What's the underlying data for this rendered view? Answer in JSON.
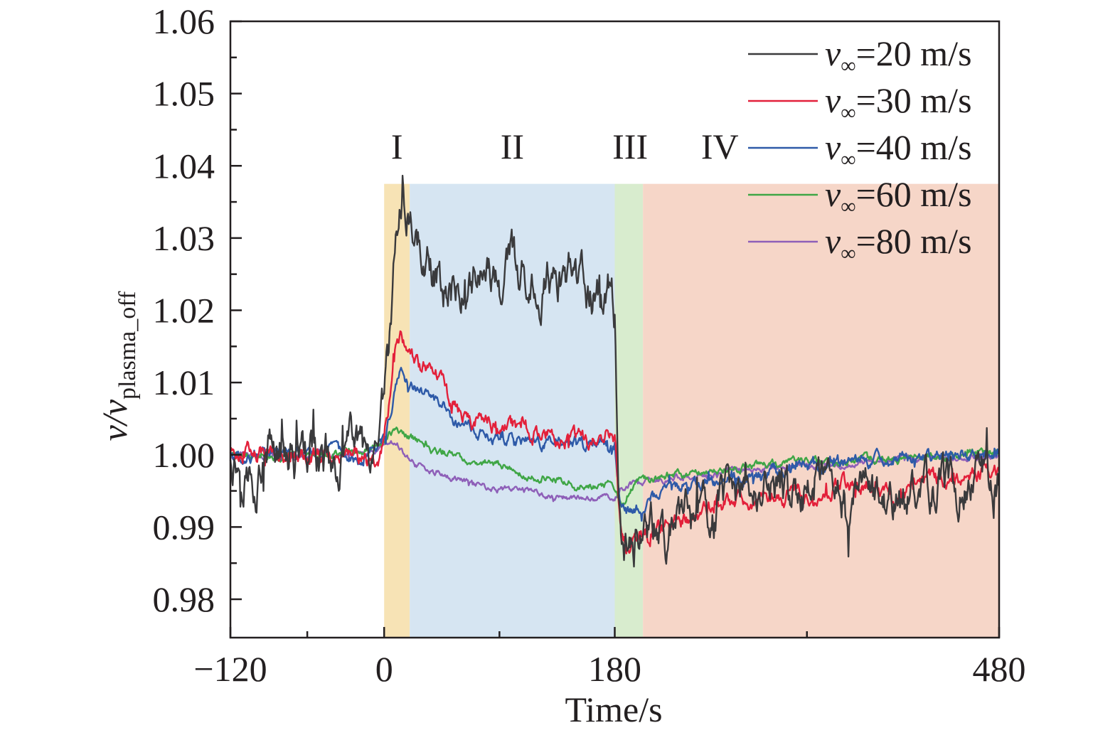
{
  "chart_data": {
    "type": "line",
    "title": "",
    "xlabel": "Time/s",
    "ylabel_main": "v/v",
    "ylabel_sub": "plasma_off",
    "xlim": [
      -120,
      480
    ],
    "ylim": [
      0.975,
      1.06
    ],
    "x_ticks": [
      -120,
      0,
      180,
      480
    ],
    "x_tick_labels": [
      "−120",
      "0",
      "180",
      "480"
    ],
    "x_minor_ticks": [
      -60,
      90,
      330
    ],
    "y_ticks": [
      0.98,
      0.99,
      1.0,
      1.01,
      1.02,
      1.03,
      1.04,
      1.05,
      1.06
    ],
    "y_tick_labels": [
      "0.98",
      "0.99",
      "1.00",
      "1.01",
      "1.02",
      "1.03",
      "1.04",
      "1.05",
      "1.06"
    ],
    "regions": [
      {
        "label": "I",
        "x_start": 0,
        "x_end": 20,
        "color": "#f7e3b5"
      },
      {
        "label": "II",
        "x_start": 20,
        "x_end": 180,
        "color": "#d6e5f2"
      },
      {
        "label": "III",
        "x_start": 180,
        "x_end": 202,
        "color": "#d8ecce"
      },
      {
        "label": "IV",
        "x_start": 202,
        "x_end": 480,
        "color": "#f6d6c8"
      }
    ],
    "region_top": 1.0375,
    "region_label_y": 1.041,
    "region_label_x": [
      10,
      100,
      192,
      262
    ],
    "legend_position": "top-right",
    "legend_symbol": "v",
    "legend_subscript": "∞",
    "series": [
      {
        "name": "=20 m/s",
        "color": "#3a3a3c",
        "amplitude": 0.0045,
        "points": [
          [
            -120,
            1.0002
          ],
          [
            -100,
            0.9975
          ],
          [
            -90,
            1.001
          ],
          [
            -60,
            1.0
          ],
          [
            -40,
            0.9985
          ],
          [
            -20,
            1.001
          ],
          [
            -10,
            0.9955
          ],
          [
            -5,
            0.996
          ],
          [
            0,
            1.006
          ],
          [
            5,
            1.016
          ],
          [
            8,
            1.026
          ],
          [
            10,
            1.032
          ],
          [
            14,
            1.034
          ],
          [
            20,
            1.033
          ],
          [
            30,
            1.028
          ],
          [
            40,
            1.025
          ],
          [
            50,
            1.023
          ],
          [
            60,
            1.024
          ],
          [
            70,
            1.026
          ],
          [
            80,
            1.025
          ],
          [
            90,
            1.023
          ],
          [
            100,
            1.027
          ],
          [
            110,
            1.023
          ],
          [
            120,
            1.024
          ],
          [
            130,
            1.025
          ],
          [
            140,
            1.023
          ],
          [
            150,
            1.022
          ],
          [
            160,
            1.022
          ],
          [
            170,
            1.022
          ],
          [
            175,
            1.024
          ],
          [
            180,
            1.019
          ],
          [
            183,
            0.995
          ],
          [
            186,
            0.988
          ],
          [
            190,
            0.987
          ],
          [
            200,
            0.989
          ],
          [
            220,
            0.9895
          ],
          [
            240,
            0.9915
          ],
          [
            260,
            0.9925
          ],
          [
            280,
            0.9945
          ],
          [
            300,
            0.995
          ],
          [
            320,
            0.9945
          ],
          [
            340,
            0.995
          ],
          [
            360,
            0.9945
          ],
          [
            380,
            0.995
          ],
          [
            400,
            0.9935
          ],
          [
            420,
            0.996
          ],
          [
            440,
            0.9955
          ],
          [
            460,
            0.9965
          ],
          [
            480,
            0.996
          ]
        ]
      },
      {
        "name": "=30 m/s",
        "color": "#e3203a",
        "amplitude": 0.0017,
        "points": [
          [
            -120,
            1.0005
          ],
          [
            -60,
            1.0
          ],
          [
            -20,
            0.9995
          ],
          [
            -5,
            0.9985
          ],
          [
            0,
            1.003
          ],
          [
            5,
            1.009
          ],
          [
            9,
            1.015
          ],
          [
            13,
            1.017
          ],
          [
            20,
            1.013
          ],
          [
            30,
            1.012
          ],
          [
            40,
            1.013
          ],
          [
            50,
            1.008
          ],
          [
            60,
            1.0055
          ],
          [
            70,
            1.005
          ],
          [
            80,
            1.0045
          ],
          [
            100,
            1.004
          ],
          [
            120,
            1.0035
          ],
          [
            140,
            1.0025
          ],
          [
            150,
            1.002
          ],
          [
            160,
            1.0015
          ],
          [
            175,
            1.0035
          ],
          [
            180,
            1.003
          ],
          [
            184,
            0.991
          ],
          [
            190,
            0.987
          ],
          [
            200,
            0.9885
          ],
          [
            220,
            0.99
          ],
          [
            240,
            0.9915
          ],
          [
            260,
            0.993
          ],
          [
            280,
            0.9935
          ],
          [
            300,
            0.9945
          ],
          [
            320,
            0.9945
          ],
          [
            340,
            0.995
          ],
          [
            360,
            0.9955
          ],
          [
            380,
            0.9955
          ],
          [
            400,
            0.9935
          ],
          [
            420,
            0.9965
          ],
          [
            440,
            0.997
          ],
          [
            460,
            0.9975
          ],
          [
            480,
            0.998
          ]
        ]
      },
      {
        "name": "=40 m/s",
        "color": "#2e5aa8",
        "amplitude": 0.0013,
        "points": [
          [
            -120,
            1.0
          ],
          [
            -60,
            1.0
          ],
          [
            -20,
            0.9995
          ],
          [
            0,
            1.002
          ],
          [
            5,
            1.006
          ],
          [
            8,
            1.009
          ],
          [
            12,
            1.0115
          ],
          [
            20,
            1.0095
          ],
          [
            30,
            1.0085
          ],
          [
            40,
            1.0075
          ],
          [
            50,
            1.0055
          ],
          [
            60,
            1.0035
          ],
          [
            80,
            1.0025
          ],
          [
            100,
            1.002
          ],
          [
            120,
            1.002
          ],
          [
            140,
            1.0015
          ],
          [
            160,
            1.001
          ],
          [
            175,
            1.001
          ],
          [
            180,
            1.001
          ],
          [
            184,
            0.9935
          ],
          [
            190,
            0.992
          ],
          [
            200,
            0.993
          ],
          [
            220,
            0.9945
          ],
          [
            240,
            0.996
          ],
          [
            260,
            0.9965
          ],
          [
            280,
            0.997
          ],
          [
            300,
            0.9975
          ],
          [
            320,
            0.998
          ],
          [
            340,
            0.9985
          ],
          [
            360,
            0.999
          ],
          [
            380,
            0.999
          ],
          [
            400,
            0.9995
          ],
          [
            440,
            1.0
          ],
          [
            480,
            1.0
          ]
        ]
      },
      {
        "name": "=60 m/s",
        "color": "#3fa646",
        "amplitude": 0.0008,
        "points": [
          [
            -120,
            1.0
          ],
          [
            -60,
            1.0
          ],
          [
            -20,
            1.0005
          ],
          [
            0,
            1.0015
          ],
          [
            5,
            1.003
          ],
          [
            10,
            1.0035
          ],
          [
            20,
            1.0025
          ],
          [
            40,
            1.0005
          ],
          [
            60,
            0.9995
          ],
          [
            80,
            0.999
          ],
          [
            100,
            0.998
          ],
          [
            120,
            0.997
          ],
          [
            140,
            0.9965
          ],
          [
            160,
            0.996
          ],
          [
            180,
            0.9955
          ],
          [
            185,
            0.9925
          ],
          [
            190,
            0.9945
          ],
          [
            200,
            0.9965
          ],
          [
            220,
            0.997
          ],
          [
            240,
            0.9975
          ],
          [
            260,
            0.998
          ],
          [
            300,
            0.9985
          ],
          [
            340,
            0.999
          ],
          [
            380,
            0.9995
          ],
          [
            420,
            0.9995
          ],
          [
            480,
            1.0005
          ]
        ]
      },
      {
        "name": "=80 m/s",
        "color": "#8e5fb8",
        "amplitude": 0.0006,
        "points": [
          [
            -120,
            1.0
          ],
          [
            -60,
            1.0
          ],
          [
            -20,
            1.0005
          ],
          [
            0,
            1.001
          ],
          [
            10,
            1.0015
          ],
          [
            20,
            0.999
          ],
          [
            40,
            0.9975
          ],
          [
            60,
            0.9965
          ],
          [
            80,
            0.9955
          ],
          [
            100,
            0.995
          ],
          [
            120,
            0.995
          ],
          [
            140,
            0.994
          ],
          [
            160,
            0.994
          ],
          [
            180,
            0.994
          ],
          [
            185,
            0.9955
          ],
          [
            195,
            0.996
          ],
          [
            210,
            0.9965
          ],
          [
            240,
            0.997
          ],
          [
            260,
            0.9975
          ],
          [
            300,
            0.998
          ],
          [
            340,
            0.9985
          ],
          [
            380,
            0.999
          ],
          [
            420,
            0.9995
          ],
          [
            480,
            1.0
          ]
        ]
      }
    ]
  }
}
